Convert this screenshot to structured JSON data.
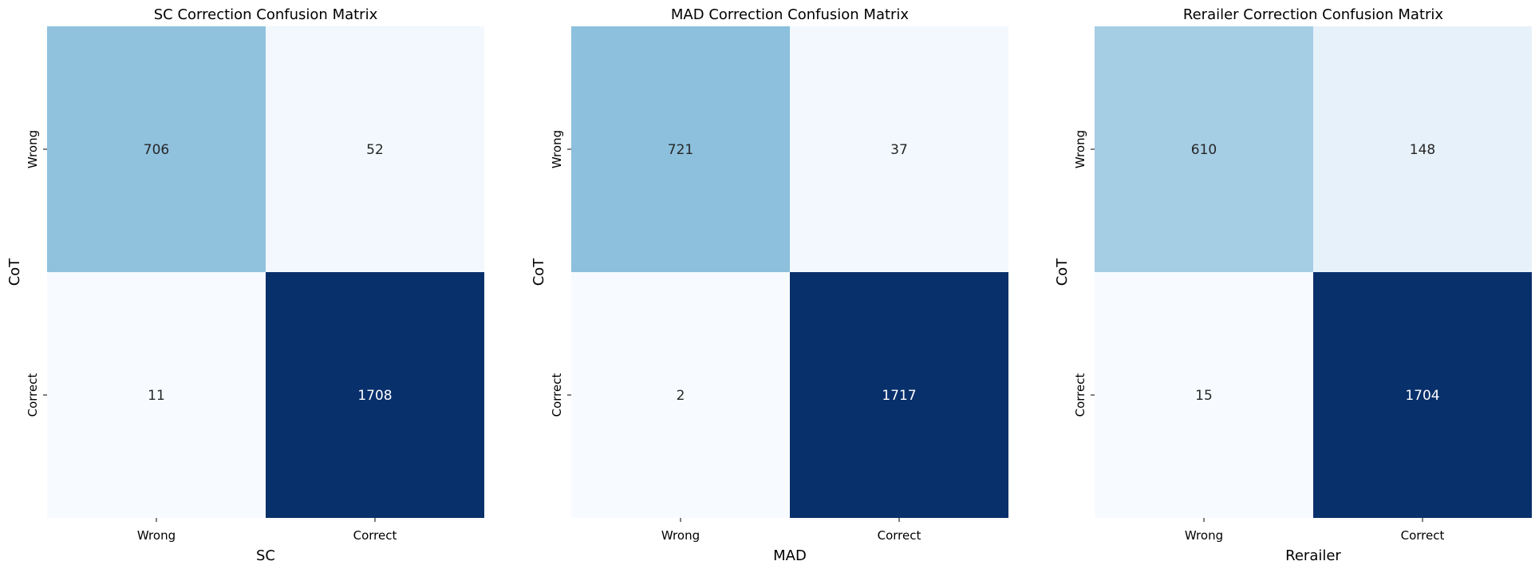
{
  "chart_data": [
    {
      "type": "heatmap",
      "title": "SC Correction Confusion Matrix",
      "xlabel": "SC",
      "ylabel": "CoT",
      "x_categories": [
        "Wrong",
        "Correct"
      ],
      "y_categories": [
        "Wrong",
        "Correct"
      ],
      "values": [
        [
          706,
          52
        ],
        [
          11,
          1708
        ]
      ],
      "colormap": "Blues",
      "colorbar": false,
      "grid": false
    },
    {
      "type": "heatmap",
      "title": "MAD Correction Confusion Matrix",
      "xlabel": "MAD",
      "ylabel": "CoT",
      "x_categories": [
        "Wrong",
        "Correct"
      ],
      "y_categories": [
        "Wrong",
        "Correct"
      ],
      "values": [
        [
          721,
          37
        ],
        [
          2,
          1717
        ]
      ],
      "colormap": "Blues",
      "colorbar": false,
      "grid": false
    },
    {
      "type": "heatmap",
      "title": "Rerailer Correction Confusion Matrix",
      "xlabel": "Rerailer",
      "ylabel": "CoT",
      "x_categories": [
        "Wrong",
        "Correct"
      ],
      "y_categories": [
        "Wrong",
        "Correct"
      ],
      "values": [
        [
          610,
          148
        ],
        [
          15,
          1704
        ]
      ],
      "colormap": "Blues",
      "colorbar": false,
      "grid": false
    }
  ],
  "colors": {
    "blues_low": "#f7fbff",
    "blues_high": "#08306b",
    "text_dark": "#262626",
    "text_light": "#ffffff"
  }
}
